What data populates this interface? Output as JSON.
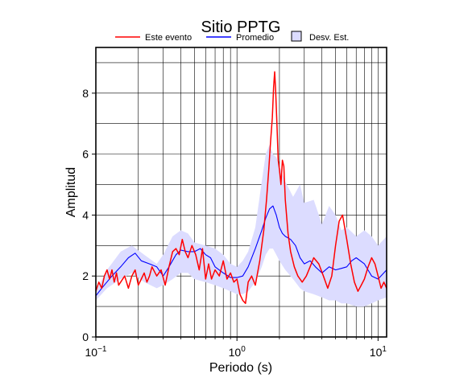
{
  "chart_data": {
    "type": "line",
    "title": "Sitio PPTG",
    "xlabel": "Periodo (s)",
    "ylabel": "Amplitud",
    "x_scale": "log",
    "xlim": [
      0.1,
      11.5
    ],
    "ylim": [
      0,
      9.5
    ],
    "grid": true,
    "legend_position": "top",
    "x_ticks": [
      {
        "value": 0.1,
        "base": "10",
        "exp": "−1"
      },
      {
        "value": 1,
        "base": "10",
        "exp": "0"
      },
      {
        "value": 10,
        "base": "10",
        "exp": "1"
      }
    ],
    "y_ticks": [
      {
        "value": 0,
        "label": "0"
      },
      {
        "value": 2,
        "label": "2"
      },
      {
        "value": 4,
        "label": "4"
      },
      {
        "value": 6,
        "label": "6"
      },
      {
        "value": 8,
        "label": "8"
      }
    ],
    "legend": [
      {
        "name": "Este evento",
        "kind": "line",
        "color": "#ff0000"
      },
      {
        "name": "Promedio",
        "kind": "line",
        "color": "#0000ff"
      },
      {
        "name": "Desv. Est.",
        "kind": "band",
        "color": "#dcdcff"
      }
    ],
    "band": {
      "name": "Desv. Est.",
      "color": "#dcdcff",
      "x": [
        0.1,
        0.12,
        0.15,
        0.18,
        0.22,
        0.27,
        0.3,
        0.35,
        0.4,
        0.45,
        0.5,
        0.6,
        0.7,
        0.8,
        0.9,
        1.0,
        1.1,
        1.2,
        1.35,
        1.5,
        1.6,
        1.7,
        1.8,
        1.9,
        2.0,
        2.2,
        2.5,
        2.8,
        3.0,
        3.5,
        4.0,
        4.5,
        5.0,
        5.5,
        6.0,
        7.0,
        8.0,
        9.0,
        10.0,
        11.5
      ],
      "upper": [
        1.5,
        2.2,
        2.8,
        3.0,
        2.7,
        2.4,
        2.7,
        3.3,
        3.5,
        3.4,
        3.1,
        3.0,
        2.9,
        2.7,
        2.4,
        2.3,
        2.5,
        2.8,
        3.6,
        5.1,
        6.0,
        6.3,
        6.0,
        5.9,
        5.6,
        5.1,
        4.6,
        5.0,
        4.4,
        4.5,
        3.7,
        4.3,
        4.0,
        3.5,
        3.6,
        3.3,
        3.5,
        3.3,
        3.0,
        3.3
      ],
      "lower": [
        1.2,
        1.6,
        1.9,
        2.1,
        1.8,
        1.6,
        1.7,
        1.9,
        2.1,
        2.1,
        1.9,
        1.8,
        1.7,
        1.6,
        1.5,
        1.4,
        1.4,
        1.5,
        1.8,
        2.3,
        2.7,
        2.9,
        2.9,
        2.7,
        2.5,
        2.2,
        1.9,
        1.6,
        1.5,
        1.4,
        1.3,
        1.2,
        1.2,
        1.1,
        1.1,
        1.0,
        1.0,
        1.1,
        1.2,
        1.3
      ]
    },
    "series": [
      {
        "name": "Promedio",
        "color": "#0000ff",
        "x": [
          0.1,
          0.11,
          0.13,
          0.15,
          0.17,
          0.19,
          0.21,
          0.24,
          0.27,
          0.3,
          0.33,
          0.37,
          0.4,
          0.45,
          0.5,
          0.55,
          0.6,
          0.65,
          0.7,
          0.8,
          0.9,
          1.0,
          1.1,
          1.2,
          1.35,
          1.5,
          1.6,
          1.7,
          1.8,
          1.9,
          2.0,
          2.1,
          2.2,
          2.4,
          2.6,
          2.8,
          3.0,
          3.3,
          3.6,
          4.0,
          4.5,
          5.0,
          5.5,
          6.0,
          6.5,
          7.0,
          8.0,
          9.0,
          10.0,
          11.5
        ],
        "y": [
          1.35,
          1.6,
          2.0,
          2.3,
          2.6,
          2.75,
          2.5,
          2.4,
          2.3,
          2.0,
          2.3,
          2.7,
          2.85,
          2.8,
          2.8,
          2.9,
          2.7,
          2.6,
          2.3,
          2.1,
          1.95,
          1.95,
          2.0,
          2.3,
          2.9,
          3.5,
          3.9,
          4.2,
          4.3,
          4.0,
          3.6,
          3.4,
          3.3,
          3.2,
          3.0,
          2.6,
          2.4,
          2.5,
          2.3,
          2.1,
          2.3,
          2.2,
          2.25,
          2.3,
          2.5,
          2.6,
          2.4,
          2.0,
          1.9,
          2.2
        ]
      },
      {
        "name": "Este evento",
        "color": "#ff0000",
        "x": [
          0.1,
          0.105,
          0.11,
          0.115,
          0.12,
          0.125,
          0.13,
          0.135,
          0.14,
          0.145,
          0.15,
          0.16,
          0.17,
          0.18,
          0.19,
          0.2,
          0.21,
          0.22,
          0.23,
          0.24,
          0.25,
          0.27,
          0.29,
          0.31,
          0.33,
          0.35,
          0.37,
          0.39,
          0.41,
          0.43,
          0.45,
          0.48,
          0.51,
          0.54,
          0.57,
          0.6,
          0.63,
          0.66,
          0.7,
          0.75,
          0.8,
          0.85,
          0.9,
          0.95,
          1.0,
          1.05,
          1.1,
          1.15,
          1.2,
          1.27,
          1.35,
          1.45,
          1.55,
          1.62,
          1.68,
          1.73,
          1.78,
          1.82,
          1.85,
          1.88,
          1.92,
          1.96,
          2.0,
          2.05,
          2.1,
          2.15,
          2.2,
          2.3,
          2.4,
          2.55,
          2.7,
          2.9,
          3.1,
          3.3,
          3.5,
          3.8,
          4.1,
          4.4,
          4.7,
          5.0,
          5.3,
          5.6,
          6.0,
          6.4,
          6.8,
          7.2,
          7.6,
          8.0,
          8.5,
          9.0,
          9.5,
          10.0,
          10.5,
          11.0,
          11.5
        ],
        "y": [
          1.5,
          1.8,
          1.6,
          2.0,
          2.2,
          1.9,
          2.2,
          1.8,
          2.1,
          1.7,
          1.8,
          2.0,
          1.6,
          2.0,
          2.2,
          1.7,
          1.9,
          2.1,
          1.8,
          2.0,
          2.3,
          2.0,
          2.2,
          1.7,
          2.3,
          2.8,
          2.9,
          2.7,
          3.2,
          2.8,
          2.6,
          3.0,
          2.7,
          2.2,
          2.9,
          1.9,
          2.4,
          1.9,
          2.2,
          2.0,
          2.5,
          1.9,
          2.1,
          1.8,
          1.9,
          1.4,
          1.2,
          1.1,
          1.8,
          2.0,
          1.7,
          2.5,
          3.5,
          4.5,
          5.5,
          6.4,
          7.2,
          8.2,
          8.7,
          8.1,
          7.0,
          5.8,
          5.5,
          5.0,
          5.8,
          5.6,
          4.5,
          3.4,
          2.8,
          2.3,
          2.0,
          1.8,
          2.0,
          2.3,
          2.6,
          2.4,
          2.0,
          1.6,
          2.0,
          3.0,
          3.8,
          4.0,
          3.2,
          2.4,
          1.8,
          1.5,
          1.7,
          1.9,
          2.3,
          2.6,
          2.4,
          2.0,
          1.6,
          1.8,
          1.6
        ]
      }
    ]
  }
}
